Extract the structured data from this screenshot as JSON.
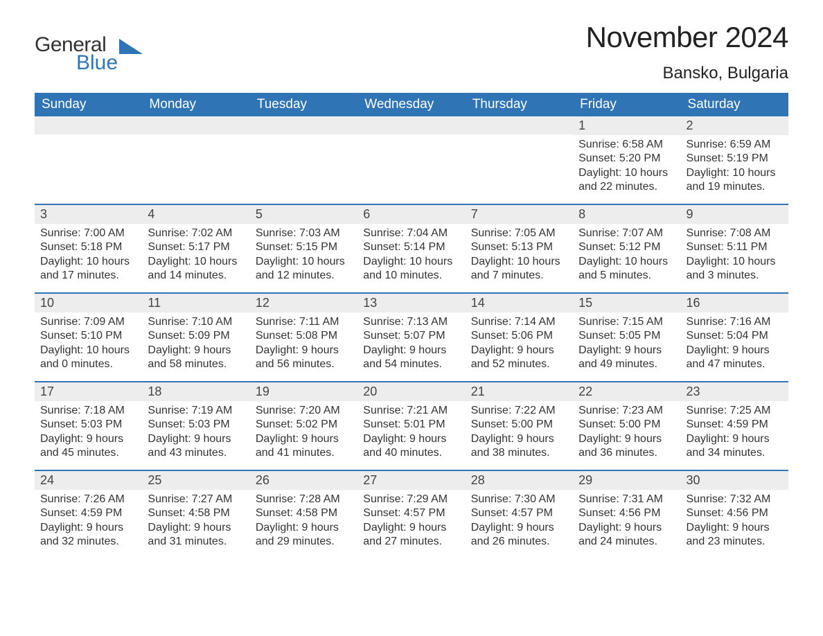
{
  "logo": {
    "text1": "General",
    "text2": "Blue",
    "tri_color": "#2f75b5"
  },
  "title": "November 2024",
  "location": "Bansko, Bulgaria",
  "colors": {
    "header_bg": "#2f75b5",
    "header_text": "#ffffff",
    "band_bg": "#ededed",
    "rule": "#2f75b5",
    "body_text": "#333333",
    "page_bg": "#ffffff"
  },
  "day_headers": [
    "Sunday",
    "Monday",
    "Tuesday",
    "Wednesday",
    "Thursday",
    "Friday",
    "Saturday"
  ],
  "weeks": [
    [
      {
        "n": "",
        "sr": "",
        "ss": "",
        "d1": "",
        "d2": ""
      },
      {
        "n": "",
        "sr": "",
        "ss": "",
        "d1": "",
        "d2": ""
      },
      {
        "n": "",
        "sr": "",
        "ss": "",
        "d1": "",
        "d2": ""
      },
      {
        "n": "",
        "sr": "",
        "ss": "",
        "d1": "",
        "d2": ""
      },
      {
        "n": "",
        "sr": "",
        "ss": "",
        "d1": "",
        "d2": ""
      },
      {
        "n": "1",
        "sr": "Sunrise: 6:58 AM",
        "ss": "Sunset: 5:20 PM",
        "d1": "Daylight: 10 hours",
        "d2": "and 22 minutes."
      },
      {
        "n": "2",
        "sr": "Sunrise: 6:59 AM",
        "ss": "Sunset: 5:19 PM",
        "d1": "Daylight: 10 hours",
        "d2": "and 19 minutes."
      }
    ],
    [
      {
        "n": "3",
        "sr": "Sunrise: 7:00 AM",
        "ss": "Sunset: 5:18 PM",
        "d1": "Daylight: 10 hours",
        "d2": "and 17 minutes."
      },
      {
        "n": "4",
        "sr": "Sunrise: 7:02 AM",
        "ss": "Sunset: 5:17 PM",
        "d1": "Daylight: 10 hours",
        "d2": "and 14 minutes."
      },
      {
        "n": "5",
        "sr": "Sunrise: 7:03 AM",
        "ss": "Sunset: 5:15 PM",
        "d1": "Daylight: 10 hours",
        "d2": "and 12 minutes."
      },
      {
        "n": "6",
        "sr": "Sunrise: 7:04 AM",
        "ss": "Sunset: 5:14 PM",
        "d1": "Daylight: 10 hours",
        "d2": "and 10 minutes."
      },
      {
        "n": "7",
        "sr": "Sunrise: 7:05 AM",
        "ss": "Sunset: 5:13 PM",
        "d1": "Daylight: 10 hours",
        "d2": "and 7 minutes."
      },
      {
        "n": "8",
        "sr": "Sunrise: 7:07 AM",
        "ss": "Sunset: 5:12 PM",
        "d1": "Daylight: 10 hours",
        "d2": "and 5 minutes."
      },
      {
        "n": "9",
        "sr": "Sunrise: 7:08 AM",
        "ss": "Sunset: 5:11 PM",
        "d1": "Daylight: 10 hours",
        "d2": "and 3 minutes."
      }
    ],
    [
      {
        "n": "10",
        "sr": "Sunrise: 7:09 AM",
        "ss": "Sunset: 5:10 PM",
        "d1": "Daylight: 10 hours",
        "d2": "and 0 minutes."
      },
      {
        "n": "11",
        "sr": "Sunrise: 7:10 AM",
        "ss": "Sunset: 5:09 PM",
        "d1": "Daylight: 9 hours",
        "d2": "and 58 minutes."
      },
      {
        "n": "12",
        "sr": "Sunrise: 7:11 AM",
        "ss": "Sunset: 5:08 PM",
        "d1": "Daylight: 9 hours",
        "d2": "and 56 minutes."
      },
      {
        "n": "13",
        "sr": "Sunrise: 7:13 AM",
        "ss": "Sunset: 5:07 PM",
        "d1": "Daylight: 9 hours",
        "d2": "and 54 minutes."
      },
      {
        "n": "14",
        "sr": "Sunrise: 7:14 AM",
        "ss": "Sunset: 5:06 PM",
        "d1": "Daylight: 9 hours",
        "d2": "and 52 minutes."
      },
      {
        "n": "15",
        "sr": "Sunrise: 7:15 AM",
        "ss": "Sunset: 5:05 PM",
        "d1": "Daylight: 9 hours",
        "d2": "and 49 minutes."
      },
      {
        "n": "16",
        "sr": "Sunrise: 7:16 AM",
        "ss": "Sunset: 5:04 PM",
        "d1": "Daylight: 9 hours",
        "d2": "and 47 minutes."
      }
    ],
    [
      {
        "n": "17",
        "sr": "Sunrise: 7:18 AM",
        "ss": "Sunset: 5:03 PM",
        "d1": "Daylight: 9 hours",
        "d2": "and 45 minutes."
      },
      {
        "n": "18",
        "sr": "Sunrise: 7:19 AM",
        "ss": "Sunset: 5:03 PM",
        "d1": "Daylight: 9 hours",
        "d2": "and 43 minutes."
      },
      {
        "n": "19",
        "sr": "Sunrise: 7:20 AM",
        "ss": "Sunset: 5:02 PM",
        "d1": "Daylight: 9 hours",
        "d2": "and 41 minutes."
      },
      {
        "n": "20",
        "sr": "Sunrise: 7:21 AM",
        "ss": "Sunset: 5:01 PM",
        "d1": "Daylight: 9 hours",
        "d2": "and 40 minutes."
      },
      {
        "n": "21",
        "sr": "Sunrise: 7:22 AM",
        "ss": "Sunset: 5:00 PM",
        "d1": "Daylight: 9 hours",
        "d2": "and 38 minutes."
      },
      {
        "n": "22",
        "sr": "Sunrise: 7:23 AM",
        "ss": "Sunset: 5:00 PM",
        "d1": "Daylight: 9 hours",
        "d2": "and 36 minutes."
      },
      {
        "n": "23",
        "sr": "Sunrise: 7:25 AM",
        "ss": "Sunset: 4:59 PM",
        "d1": "Daylight: 9 hours",
        "d2": "and 34 minutes."
      }
    ],
    [
      {
        "n": "24",
        "sr": "Sunrise: 7:26 AM",
        "ss": "Sunset: 4:59 PM",
        "d1": "Daylight: 9 hours",
        "d2": "and 32 minutes."
      },
      {
        "n": "25",
        "sr": "Sunrise: 7:27 AM",
        "ss": "Sunset: 4:58 PM",
        "d1": "Daylight: 9 hours",
        "d2": "and 31 minutes."
      },
      {
        "n": "26",
        "sr": "Sunrise: 7:28 AM",
        "ss": "Sunset: 4:58 PM",
        "d1": "Daylight: 9 hours",
        "d2": "and 29 minutes."
      },
      {
        "n": "27",
        "sr": "Sunrise: 7:29 AM",
        "ss": "Sunset: 4:57 PM",
        "d1": "Daylight: 9 hours",
        "d2": "and 27 minutes."
      },
      {
        "n": "28",
        "sr": "Sunrise: 7:30 AM",
        "ss": "Sunset: 4:57 PM",
        "d1": "Daylight: 9 hours",
        "d2": "and 26 minutes."
      },
      {
        "n": "29",
        "sr": "Sunrise: 7:31 AM",
        "ss": "Sunset: 4:56 PM",
        "d1": "Daylight: 9 hours",
        "d2": "and 24 minutes."
      },
      {
        "n": "30",
        "sr": "Sunrise: 7:32 AM",
        "ss": "Sunset: 4:56 PM",
        "d1": "Daylight: 9 hours",
        "d2": "and 23 minutes."
      }
    ]
  ]
}
